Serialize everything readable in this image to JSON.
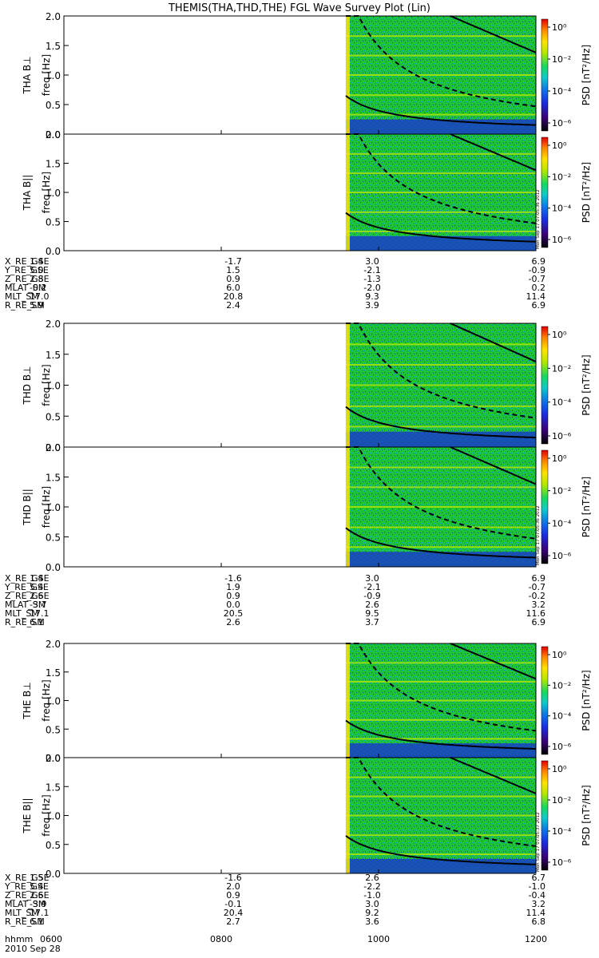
{
  "title": "THEMIS(THA,THD,THE) FGL Wave Survey Plot (Lin)",
  "colors": {
    "background_fill": "#1bc43a",
    "colormap": [
      "#000000",
      "#3b007a",
      "#1a2dd8",
      "#0a7fe6",
      "#14c8c8",
      "#1bd85a",
      "#b8e600",
      "#ffe000",
      "#ff8a00",
      "#e00000"
    ]
  },
  "colorbar": {
    "label": "PSD [nT²/Hz]",
    "ticks": [
      "10⁰",
      "10⁻²",
      "10⁻⁴",
      "10⁻⁶"
    ]
  },
  "stamps": [
    "Mon Sep 17 07:05:36 2012",
    "Mon Sep 17 07:05:36 2012",
    "Mon Sep 17 07:05:37 2012"
  ],
  "chart_data": [
    {
      "type": "heatmap",
      "panel": "THA B⊥",
      "ylabel_line1": "THA B⊥",
      "ylabel_line2": "freq [Hz]",
      "ylim": [
        0,
        2.0
      ],
      "ytick_labels": [
        "0.0",
        "0.5",
        "1.0",
        "1.5",
        "2.0"
      ],
      "xlim": [
        600,
        1200
      ],
      "data_start_hhmm": 935
    },
    {
      "type": "heatmap",
      "panel": "THA B∥",
      "ylabel_line1": "THA B||",
      "ylabel_line2": "freq [Hz]",
      "ylim": [
        0,
        2.0
      ],
      "ytick_labels": [
        "0.0",
        "0.5",
        "1.0",
        "1.5",
        "2.0"
      ],
      "xlim": [
        600,
        1200
      ],
      "data_start_hhmm": 935
    },
    {
      "type": "heatmap",
      "panel": "THD B⊥",
      "ylabel_line1": "THD B⊥",
      "ylabel_line2": "freq [Hz]",
      "ylim": [
        0,
        2.0
      ],
      "ytick_labels": [
        "0.0",
        "0.5",
        "1.0",
        "1.5",
        "2.0"
      ],
      "xlim": [
        600,
        1200
      ],
      "data_start_hhmm": 935
    },
    {
      "type": "heatmap",
      "panel": "THD B∥",
      "ylabel_line1": "THD B||",
      "ylabel_line2": "freq [Hz]",
      "ylim": [
        0,
        2.0
      ],
      "ytick_labels": [
        "0.0",
        "0.5",
        "1.0",
        "1.5",
        "2.0"
      ],
      "xlim": [
        600,
        1200
      ],
      "data_start_hhmm": 935
    },
    {
      "type": "heatmap",
      "panel": "THE B⊥",
      "ylabel_line1": "THE B⊥",
      "ylabel_line2": "freq [Hz]",
      "ylim": [
        0,
        2.0
      ],
      "ytick_labels": [
        "0.0",
        "0.5",
        "1.0",
        "1.5",
        "2.0"
      ],
      "xlim": [
        600,
        1200
      ],
      "data_start_hhmm": 935
    },
    {
      "type": "heatmap",
      "panel": "THE B∥",
      "ylabel_line1": "THE B||",
      "ylabel_line2": "freq [Hz]",
      "ylim": [
        0,
        2.0
      ],
      "ytick_labels": [
        "0.0",
        "0.5",
        "1.0",
        "1.5",
        "2.0"
      ],
      "xlim": [
        600,
        1200
      ],
      "data_start_hhmm": 935
    }
  ],
  "ephemeris": [
    {
      "probe": "THA",
      "rows": [
        {
          "label": "X_RE_GSE",
          "values": [
            "1.4",
            "-1.7",
            "3.0",
            "6.9"
          ]
        },
        {
          "label": "Y_RE_GSE",
          "values": [
            "5.0",
            "1.5",
            "-2.1",
            "-0.9"
          ]
        },
        {
          "label": "Z_RE_GSE",
          "values": [
            "2.8",
            "0.9",
            "-1.3",
            "-0.7"
          ]
        },
        {
          "label": "MLAT_SM",
          "values": [
            "-0.2",
            "6.0",
            "-2.0",
            "0.2"
          ]
        },
        {
          "label": "MLT_SM",
          "values": [
            "17.0",
            "20.8",
            "9.3",
            "11.4"
          ]
        },
        {
          "label": "R_RE_SM",
          "values": [
            "5.9",
            "2.4",
            "3.9",
            "6.9"
          ]
        }
      ]
    },
    {
      "probe": "THD",
      "rows": [
        {
          "label": "X_RE_GSE",
          "values": [
            "1.4",
            "-1.6",
            "3.0",
            "6.9"
          ]
        },
        {
          "label": "Y_RE_GSE",
          "values": [
            "5.4",
            "1.9",
            "-2.1",
            "-0.7"
          ]
        },
        {
          "label": "Z_RE_GSE",
          "values": [
            "2.6",
            "0.9",
            "-0.9",
            "-0.2"
          ]
        },
        {
          "label": "MLAT_SM",
          "values": [
            "-3.7",
            "0.0",
            "2.6",
            "3.2"
          ]
        },
        {
          "label": "MLT_SM",
          "values": [
            "17.1",
            "20.5",
            "9.5",
            "11.6"
          ]
        },
        {
          "label": "R_RE_SM",
          "values": [
            "6.1",
            "2.6",
            "3.7",
            "6.9"
          ]
        }
      ]
    },
    {
      "probe": "THE",
      "rows": [
        {
          "label": "X_RE_GSE",
          "values": [
            "1.5",
            "-1.6",
            "2.6",
            "6.7"
          ]
        },
        {
          "label": "Y_RE_GSE",
          "values": [
            "5.4",
            "2.0",
            "-2.2",
            "-1.0"
          ]
        },
        {
          "label": "Z_RE_GSE",
          "values": [
            "2.6",
            "0.9",
            "-1.0",
            "-0.4"
          ]
        },
        {
          "label": "MLAT_SM",
          "values": [
            "-3.9",
            "-0.1",
            "3.0",
            "3.2"
          ]
        },
        {
          "label": "MLT_SM",
          "values": [
            "17.1",
            "20.4",
            "9.2",
            "11.4"
          ]
        },
        {
          "label": "R_RE_SM",
          "values": [
            "6.1",
            "2.7",
            "3.6",
            "6.8"
          ]
        }
      ]
    }
  ],
  "time_axis": {
    "label": "hhmm",
    "ticks": [
      "0600",
      "0800",
      "1000",
      "1200"
    ],
    "date": "2010 Sep 28"
  }
}
